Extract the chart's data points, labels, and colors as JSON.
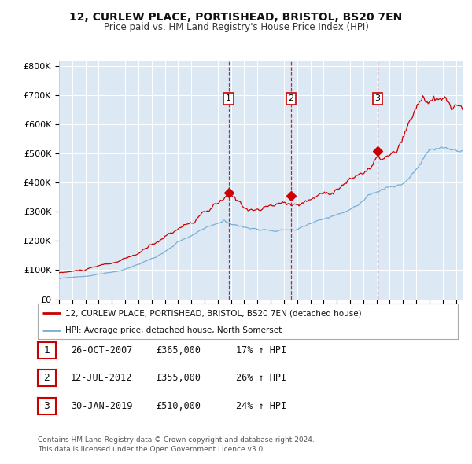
{
  "title": "12, CURLEW PLACE, PORTISHEAD, BRISTOL, BS20 7EN",
  "subtitle": "Price paid vs. HM Land Registry's House Price Index (HPI)",
  "background_color": "#ffffff",
  "plot_bg_color": "#dce9f5",
  "grid_color": "#ffffff",
  "red_line_color": "#cc0000",
  "blue_line_color": "#7bafd4",
  "sale_marker_color": "#cc0000",
  "vline_color": "#cc0000",
  "yticks": [
    0,
    100000,
    200000,
    300000,
    400000,
    500000,
    600000,
    700000,
    800000
  ],
  "ytick_labels": [
    "£0",
    "£100K",
    "£200K",
    "£300K",
    "£400K",
    "£500K",
    "£600K",
    "£700K",
    "£800K"
  ],
  "ylim": [
    0,
    820000
  ],
  "xlim_start": 1995.0,
  "xlim_end": 2025.5,
  "sale_dates": [
    2007.82,
    2012.53,
    2019.08
  ],
  "sale_prices": [
    365000,
    355000,
    510000
  ],
  "sale_labels": [
    "1",
    "2",
    "3"
  ],
  "sale_info": [
    {
      "label": "1",
      "date": "26-OCT-2007",
      "price": "£365,000",
      "hpi": "17% ↑ HPI"
    },
    {
      "label": "2",
      "date": "12-JUL-2012",
      "price": "£355,000",
      "hpi": "26% ↑ HPI"
    },
    {
      "label": "3",
      "date": "30-JAN-2019",
      "price": "£510,000",
      "hpi": "24% ↑ HPI"
    }
  ],
  "legend_red": "12, CURLEW PLACE, PORTISHEAD, BRISTOL, BS20 7EN (detached house)",
  "legend_blue": "HPI: Average price, detached house, North Somerset",
  "footnote1": "Contains HM Land Registry data © Crown copyright and database right 2024.",
  "footnote2": "This data is licensed under the Open Government Licence v3.0."
}
